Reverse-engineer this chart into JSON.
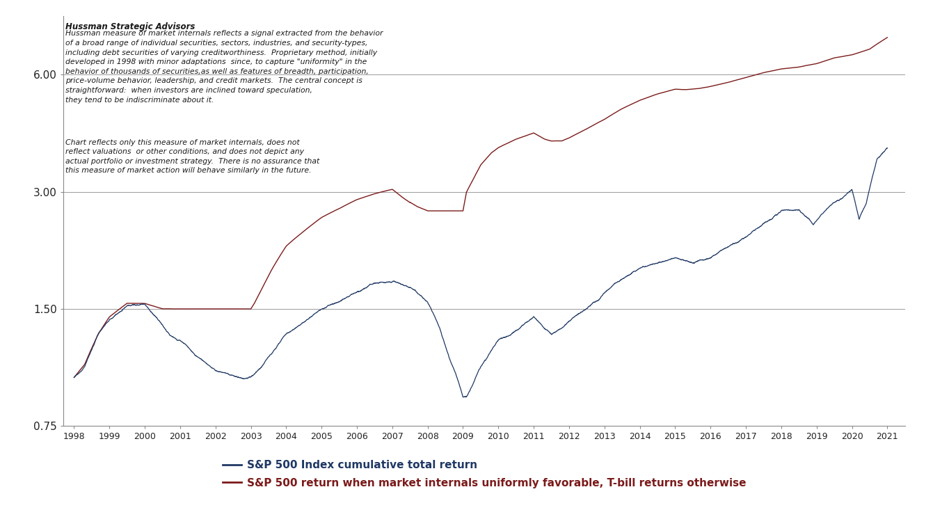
{
  "title_company": "Hussman Strategic Advisors",
  "annotation1": "Hussman measure of market internals reflects a signal extracted from the behavior\nof a broad range of individual securities, sectors, industries, and security-types,\nincluding debt securities of varying creditworthiness.  Proprietary method, initially\ndeveloped in 1998 with minor adaptations  since, to capture \"uniformity\" in the\nbehavior of thousands of securities,as well as features of breadth, participation,\nprice-volume behavior, leadership, and credit markets.  The central concept is\nstraightforward:  when investors are inclined toward speculation,\nthey tend to be indiscriminate about it.",
  "annotation2": "Chart reflects only this measure of market internals, does not\nreflect valuations  or other conditions, and does not depict any\nactual portfolio or investment strategy.  There is no assurance that\nthis measure of market action will behave similarly in the future.",
  "legend1": "S&P 500 Index cumulative total return",
  "legend2": "S&P 500 return when market internals uniformly favorable, T-bill returns otherwise",
  "color_sp500": "#1F3864",
  "color_strategy": "#7B1A1A",
  "background_color": "#FFFFFF",
  "ylim_low": 0.75,
  "ylim_high": 8.5,
  "yticks": [
    0.75,
    1.5,
    3.0,
    6.0
  ],
  "ytick_labels": [
    "0.75",
    "1.50",
    "3.00",
    "6.00"
  ],
  "start_year": 1998,
  "end_year": 2021,
  "sp500_years": [
    1998.0,
    1998.3,
    1998.7,
    1999.0,
    1999.5,
    2000.0,
    2000.3,
    2000.7,
    2001.0,
    2001.3,
    2001.7,
    2002.0,
    2002.5,
    2002.8,
    2003.0,
    2003.3,
    2003.7,
    2004.0,
    2004.5,
    2005.0,
    2005.5,
    2006.0,
    2006.5,
    2007.0,
    2007.5,
    2007.8,
    2008.0,
    2008.3,
    2008.6,
    2009.0,
    2009.1,
    2009.3,
    2009.5,
    2009.8,
    2010.0,
    2010.5,
    2011.0,
    2011.5,
    2012.0,
    2012.5,
    2013.0,
    2013.5,
    2014.0,
    2014.5,
    2015.0,
    2015.5,
    2016.0,
    2016.5,
    2017.0,
    2017.5,
    2018.0,
    2018.5,
    2018.9,
    2019.0,
    2019.5,
    2020.0,
    2020.2,
    2020.4,
    2020.7,
    2021.0
  ],
  "sp500_vals": [
    1.0,
    1.07,
    1.3,
    1.42,
    1.55,
    1.56,
    1.45,
    1.3,
    1.25,
    1.18,
    1.1,
    1.05,
    1.0,
    0.98,
    1.0,
    1.05,
    1.18,
    1.3,
    1.4,
    1.5,
    1.57,
    1.65,
    1.72,
    1.73,
    1.68,
    1.6,
    1.53,
    1.35,
    1.12,
    0.88,
    0.88,
    0.96,
    1.05,
    1.15,
    1.22,
    1.3,
    1.4,
    1.28,
    1.38,
    1.48,
    1.62,
    1.77,
    1.88,
    1.94,
    2.02,
    1.95,
    2.0,
    2.15,
    2.28,
    2.5,
    2.7,
    2.72,
    2.5,
    2.55,
    2.88,
    3.1,
    2.6,
    2.85,
    3.7,
    4.0
  ],
  "strat_years": [
    1998.0,
    1998.3,
    1998.7,
    1999.0,
    1999.5,
    2000.0,
    2000.5,
    2001.0,
    2001.5,
    2002.0,
    2002.3,
    2002.7,
    2003.0,
    2003.1,
    2003.3,
    2003.6,
    2004.0,
    2004.5,
    2005.0,
    2005.5,
    2006.0,
    2006.5,
    2007.0,
    2007.3,
    2007.5,
    2007.7,
    2008.0,
    2008.3,
    2008.6,
    2009.0,
    2009.1,
    2009.3,
    2009.5,
    2009.8,
    2010.0,
    2010.5,
    2011.0,
    2011.3,
    2011.5,
    2011.8,
    2012.0,
    2012.5,
    2013.0,
    2013.5,
    2014.0,
    2014.5,
    2015.0,
    2015.3,
    2015.7,
    2016.0,
    2016.5,
    2017.0,
    2017.5,
    2018.0,
    2018.5,
    2019.0,
    2019.5,
    2020.0,
    2020.5,
    2021.0
  ],
  "strat_vals": [
    1.0,
    1.08,
    1.3,
    1.43,
    1.55,
    1.55,
    1.5,
    1.5,
    1.5,
    1.5,
    1.5,
    1.5,
    1.5,
    1.55,
    1.68,
    1.9,
    2.18,
    2.38,
    2.58,
    2.72,
    2.87,
    2.97,
    3.05,
    2.9,
    2.82,
    2.75,
    2.68,
    2.68,
    2.68,
    2.68,
    3.0,
    3.25,
    3.52,
    3.78,
    3.9,
    4.1,
    4.25,
    4.1,
    4.05,
    4.05,
    4.12,
    4.35,
    4.6,
    4.9,
    5.15,
    5.35,
    5.5,
    5.48,
    5.52,
    5.58,
    5.72,
    5.88,
    6.05,
    6.18,
    6.25,
    6.38,
    6.6,
    6.72,
    6.95,
    7.45
  ]
}
